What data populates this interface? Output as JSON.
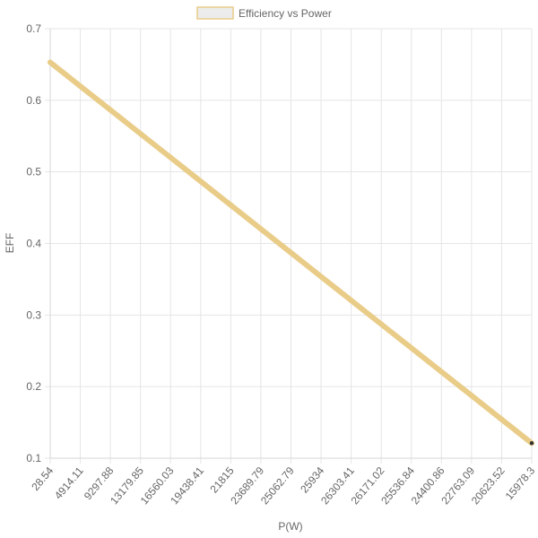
{
  "chart_data": {
    "type": "line",
    "legend": {
      "label": "Efficiency vs Power",
      "position": "top"
    },
    "xlabel": "P(W)",
    "ylabel": "EFF",
    "x_ticks": [
      "28.54",
      "4914.11",
      "9297.88",
      "13179.85",
      "16560.03",
      "19438.41",
      "21815",
      "23689.79",
      "25062.79",
      "25934",
      "26303.41",
      "26171.02",
      "25536.84",
      "24400.86",
      "22763.09",
      "20623.52",
      "15978.3"
    ],
    "y_ticks": [
      "0.7",
      "0.6",
      "0.5",
      "0.4",
      "0.3",
      "0.2",
      "0.1"
    ],
    "ylim": [
      0.1,
      0.7
    ],
    "series": [
      {
        "name": "Efficiency vs Power",
        "x": [
          "28.54",
          "4914.11",
          "9297.88",
          "13179.85",
          "16560.03",
          "19438.41",
          "21815",
          "23689.79",
          "25062.79",
          "25934",
          "26303.41",
          "26171.02",
          "25536.84",
          "24400.86",
          "22763.09",
          "20623.52",
          "15978.3"
        ],
        "values": [
          0.653,
          0.6197,
          0.5865,
          0.5532,
          0.52,
          0.4867,
          0.4535,
          0.4202,
          0.387,
          0.3537,
          0.3205,
          0.2872,
          0.254,
          0.2207,
          0.1875,
          0.1542,
          0.121
        ]
      }
    ],
    "grid": true,
    "colors": {
      "line": "#e9cc88",
      "legend_fill": "#ececec",
      "legend_border": "#e9cc88",
      "last_point": "#333333"
    }
  }
}
